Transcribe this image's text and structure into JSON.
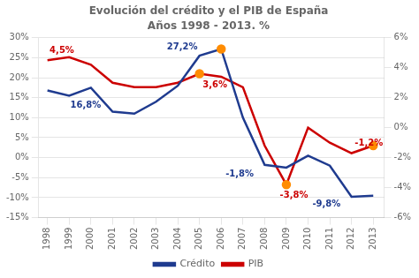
{
  "chart_data": {
    "type": "line",
    "title": "Evolución del crédito y el PIB de España",
    "subtitle": "Años 1998 - 2013. %",
    "x": [
      1998,
      1999,
      2000,
      2001,
      2002,
      2003,
      2004,
      2005,
      2006,
      2007,
      2008,
      2009,
      2010,
      2011,
      2012,
      2013
    ],
    "xlim": [
      1997.6,
      2013.5
    ],
    "xticks": [
      1998,
      1999,
      2000,
      2001,
      2002,
      2003,
      2004,
      2005,
      2006,
      2007,
      2008,
      2009,
      2010,
      2011,
      2012,
      2013
    ],
    "ylim": [
      -15,
      30
    ],
    "yticks": [
      {
        "value": -15,
        "label": "-15%"
      },
      {
        "value": -10,
        "label": "-10%"
      },
      {
        "value": -5,
        "label": "-5%"
      },
      {
        "value": 0,
        "label": "0%"
      },
      {
        "value": 5,
        "label": "5%"
      },
      {
        "value": 10,
        "label": "10%"
      },
      {
        "value": 15,
        "label": "15%"
      },
      {
        "value": 20,
        "label": "20%"
      },
      {
        "value": 25,
        "label": "25%"
      },
      {
        "value": 30,
        "label": "30%"
      }
    ],
    "y2lim": [
      -6,
      6
    ],
    "y2ticks": [
      {
        "value": -6,
        "label": "-6%"
      },
      {
        "value": -4,
        "label": "-4%"
      },
      {
        "value": -2,
        "label": "-2%"
      },
      {
        "value": 0,
        "label": "0%"
      },
      {
        "value": 2,
        "label": "2%"
      },
      {
        "value": 4,
        "label": "4%"
      },
      {
        "value": 6,
        "label": "6%"
      }
    ],
    "grid": true,
    "legend": "bottom",
    "series": [
      {
        "name": "Crédito",
        "color": "#1f3b8f",
        "values": [
          16.8,
          15.5,
          17.5,
          11.5,
          11.0,
          14.0,
          18.0,
          25.5,
          27.2,
          10.0,
          -1.8,
          -2.5,
          0.5,
          -2.0,
          -9.8,
          -9.5
        ]
      },
      {
        "name": "PIB",
        "color": "#cc0000",
        "axis": "y2",
        "values": [
          4.5,
          4.7,
          4.2,
          3.0,
          2.7,
          2.7,
          3.0,
          3.6,
          3.4,
          2.7,
          -1.2,
          -3.8,
          0.0,
          -1.0,
          -1.7,
          -1.2
        ]
      },
      {
        "type": "scatter",
        "marker": "circle",
        "color": "#ff8c00",
        "x": [
          2006
        ],
        "values": [
          27.2
        ]
      },
      {
        "type": "scatter",
        "marker": "circle",
        "color": "#ff8c00",
        "axis": "y2",
        "x": [
          2005,
          2009,
          2013
        ],
        "values": [
          3.6,
          -3.8,
          -1.2
        ]
      }
    ],
    "annotations": [
      {
        "text": "16,8%",
        "x": 1999.05,
        "y": 12.5,
        "color": "#1f3b8f"
      },
      {
        "text": "27,2%",
        "x": 2003.5,
        "y": 27.0,
        "color": "#1f3b8f"
      },
      {
        "text": "-1,8%",
        "x": 2006.2,
        "y": -4.8,
        "color": "#1f3b8f"
      },
      {
        "text": "-9,8%",
        "x": 2010.2,
        "y": -12.3,
        "color": "#1f3b8f"
      },
      {
        "text": "4,5%",
        "x": 1998.1,
        "y": 5.0,
        "axis": "y2",
        "color": "#cc0000"
      },
      {
        "text": "3,6%",
        "x": 2005.15,
        "y": 2.7,
        "axis": "y2",
        "color": "#cc0000"
      },
      {
        "text": "-3,8%",
        "x": 2008.7,
        "y": -4.7,
        "axis": "y2",
        "color": "#cc0000"
      },
      {
        "text": "-1,2%",
        "x": 2012.15,
        "y": -1.2,
        "axis": "y2",
        "color": "#cc0000"
      }
    ]
  }
}
